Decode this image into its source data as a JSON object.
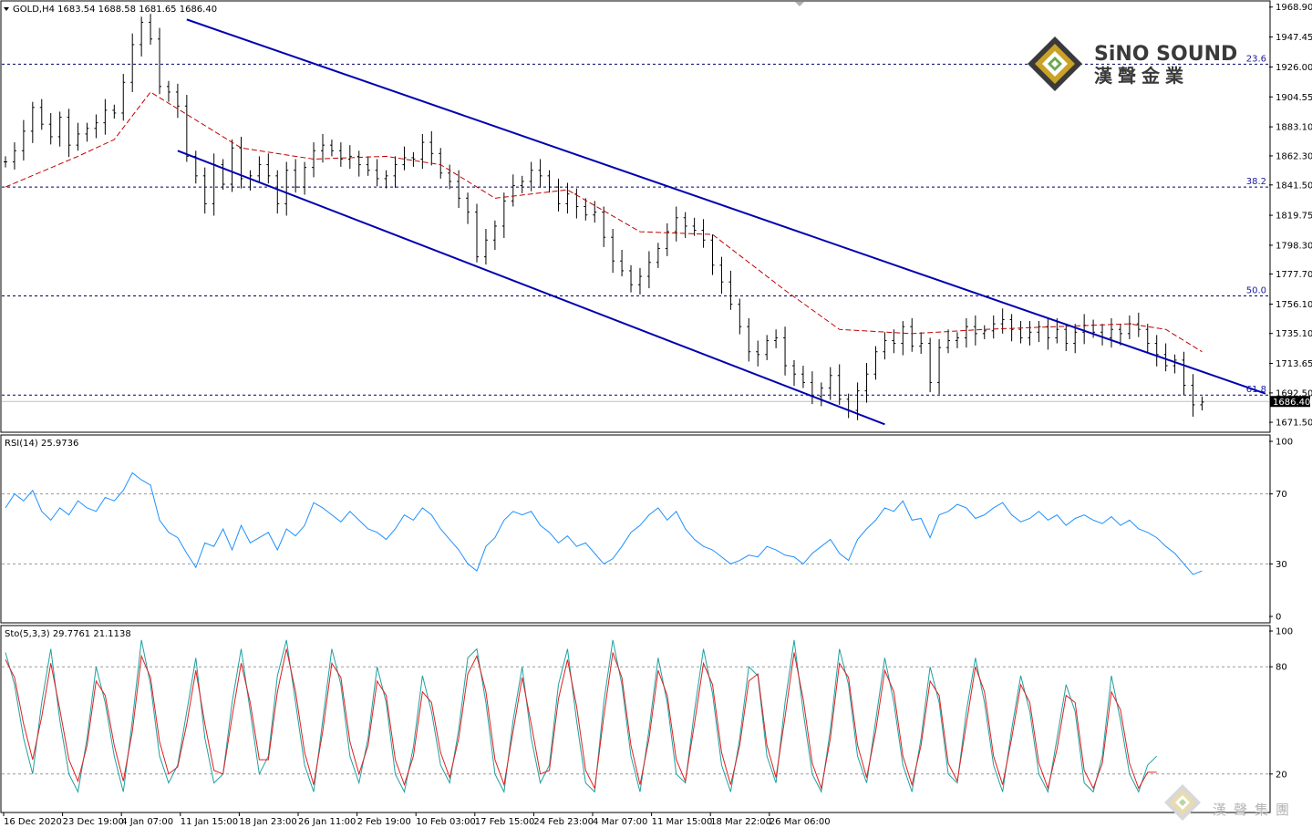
{
  "colors": {
    "background": "#ffffff",
    "candle": "#000000",
    "ma": "#c00000",
    "channel": "#0000b0",
    "fib": "#000066",
    "rsi": "#1e90ff",
    "sto_main": "#20a0a0",
    "sto_signal": "#e02020",
    "grid": "#9a9a9a"
  },
  "header": {
    "symbol_label": "GOLD,H4  1683.54 1688.58 1681.65 1686.40"
  },
  "logo": {
    "name_en": "SiNO SOUND",
    "name_zh": "漢聲金業",
    "watermark_zh": "漢聲集團"
  },
  "chart_data": [
    {
      "type": "candlestick",
      "pane": "price",
      "symbol": "GOLD",
      "timeframe": "H4",
      "last_ohlc": {
        "open": 1683.54,
        "high": 1688.58,
        "low": 1681.65,
        "close": 1686.4
      },
      "current_price_label": "1686.40",
      "ylim": [
        1665,
        1972
      ],
      "y_ticks": [
        "1968.90",
        "1947.45",
        "1926.00",
        "1904.55",
        "1883.10",
        "1862.30",
        "1841.50",
        "1819.75",
        "1798.30",
        "1777.70",
        "1756.10",
        "1735.10",
        "1713.65",
        "1692.50",
        "1671.50"
      ],
      "x_tick_labels": [
        "16 Dec 2020",
        "23 Dec 19:00",
        "4 Jan 07:00",
        "11 Jan 15:00",
        "18 Jan 23:00",
        "26 Jan 11:00",
        "2 Feb 19:00",
        "10 Feb 03:00",
        "17 Feb 15:00",
        "24 Feb 23:00",
        "4 Mar 07:00",
        "11 Mar 15:00",
        "18 Mar 22:00",
        "26 Mar 06:00"
      ],
      "close_path": [
        [
          0,
          1858
        ],
        [
          1,
          1866
        ],
        [
          2,
          1880
        ],
        [
          3,
          1897
        ],
        [
          4,
          1885
        ],
        [
          5,
          1876
        ],
        [
          6,
          1890
        ],
        [
          7,
          1870
        ],
        [
          8,
          1878
        ],
        [
          9,
          1882
        ],
        [
          10,
          1886
        ],
        [
          11,
          1895
        ],
        [
          12,
          1893
        ],
        [
          13,
          1915
        ],
        [
          14,
          1942
        ],
        [
          15,
          1958
        ],
        [
          16,
          1946
        ],
        [
          17,
          1912
        ],
        [
          18,
          1908
        ],
        [
          19,
          1898
        ],
        [
          20,
          1862
        ],
        [
          21,
          1848
        ],
        [
          22,
          1828
        ],
        [
          23,
          1856
        ],
        [
          24,
          1842
        ],
        [
          25,
          1868
        ],
        [
          26,
          1846
        ],
        [
          27,
          1848
        ],
        [
          28,
          1856
        ],
        [
          29,
          1848
        ],
        [
          30,
          1828
        ],
        [
          31,
          1852
        ],
        [
          32,
          1840
        ],
        [
          33,
          1854
        ],
        [
          34,
          1866
        ],
        [
          35,
          1870
        ],
        [
          36,
          1866
        ],
        [
          37,
          1860
        ],
        [
          38,
          1862
        ],
        [
          39,
          1856
        ],
        [
          40,
          1852
        ],
        [
          41,
          1846
        ],
        [
          42,
          1848
        ],
        [
          43,
          1856
        ],
        [
          44,
          1861
        ],
        [
          45,
          1860
        ],
        [
          46,
          1872
        ],
        [
          47,
          1864
        ],
        [
          48,
          1850
        ],
        [
          49,
          1844
        ],
        [
          50,
          1832
        ],
        [
          51,
          1822
        ],
        [
          52,
          1790
        ],
        [
          53,
          1802
        ],
        [
          54,
          1812
        ],
        [
          55,
          1830
        ],
        [
          56,
          1841
        ],
        [
          57,
          1844
        ],
        [
          58,
          1852
        ],
        [
          59,
          1848
        ],
        [
          60,
          1840
        ],
        [
          61,
          1828
        ],
        [
          62,
          1835
        ],
        [
          63,
          1826
        ],
        [
          64,
          1820
        ],
        [
          65,
          1822
        ],
        [
          66,
          1804
        ],
        [
          67,
          1787
        ],
        [
          68,
          1780
        ],
        [
          69,
          1770
        ],
        [
          70,
          1776
        ],
        [
          71,
          1786
        ],
        [
          72,
          1796
        ],
        [
          73,
          1808
        ],
        [
          74,
          1818
        ],
        [
          75,
          1812
        ],
        [
          76,
          1809
        ],
        [
          77,
          1802
        ],
        [
          78,
          1784
        ],
        [
          79,
          1772
        ],
        [
          80,
          1756
        ],
        [
          81,
          1740
        ],
        [
          82,
          1722
        ],
        [
          83,
          1720
        ],
        [
          84,
          1730
        ],
        [
          85,
          1732
        ],
        [
          86,
          1712
        ],
        [
          87,
          1706
        ],
        [
          88,
          1700
        ],
        [
          89,
          1690
        ],
        [
          90,
          1696
        ],
        [
          91,
          1705
        ],
        [
          92,
          1688
        ],
        [
          93,
          1680
        ],
        [
          94,
          1694
        ],
        [
          95,
          1706
        ],
        [
          96,
          1722
        ],
        [
          97,
          1730
        ],
        [
          98,
          1728
        ],
        [
          99,
          1740
        ],
        [
          100,
          1726
        ],
        [
          101,
          1728
        ],
        [
          102,
          1700
        ],
        [
          103,
          1725
        ],
        [
          104,
          1730
        ],
        [
          105,
          1732
        ],
        [
          106,
          1740
        ],
        [
          107,
          1735
        ],
        [
          108,
          1737
        ],
        [
          109,
          1742
        ],
        [
          110,
          1745
        ],
        [
          111,
          1738
        ],
        [
          112,
          1732
        ],
        [
          113,
          1736
        ],
        [
          114,
          1740
        ],
        [
          115,
          1732
        ],
        [
          116,
          1738
        ],
        [
          117,
          1728
        ],
        [
          118,
          1736
        ],
        [
          119,
          1741
        ],
        [
          120,
          1736
        ],
        [
          121,
          1732
        ],
        [
          122,
          1738
        ],
        [
          123,
          1735
        ],
        [
          124,
          1742
        ],
        [
          125,
          1738
        ],
        [
          126,
          1728
        ],
        [
          127,
          1720
        ],
        [
          128,
          1712
        ],
        [
          129,
          1716
        ],
        [
          130,
          1698
        ],
        [
          131,
          1684
        ],
        [
          132,
          1686
        ]
      ],
      "moving_average": {
        "type": "dashed",
        "points": [
          [
            0,
            1840
          ],
          [
            8,
            1862
          ],
          [
            12,
            1874
          ],
          [
            16,
            1908
          ],
          [
            20,
            1892
          ],
          [
            26,
            1868
          ],
          [
            34,
            1860
          ],
          [
            42,
            1862
          ],
          [
            48,
            1856
          ],
          [
            54,
            1832
          ],
          [
            62,
            1838
          ],
          [
            70,
            1808
          ],
          [
            78,
            1806
          ],
          [
            86,
            1766
          ],
          [
            92,
            1738
          ],
          [
            100,
            1735
          ],
          [
            108,
            1738
          ],
          [
            116,
            1740
          ],
          [
            124,
            1742
          ],
          [
            128,
            1738
          ],
          [
            132,
            1722
          ]
        ]
      },
      "channel_lines": [
        {
          "from": [
            20,
            1960
          ],
          "to": [
            139,
            1692
          ]
        },
        {
          "from": [
            19,
            1866
          ],
          "to": [
            97,
            1670
          ]
        }
      ],
      "fib_levels": [
        {
          "label": "23.6",
          "value": 1928
        },
        {
          "label": "38.2",
          "value": 1840
        },
        {
          "label": "50.0",
          "value": 1762
        },
        {
          "label": "61.8",
          "value": 1691
        }
      ]
    },
    {
      "type": "line",
      "pane": "rsi",
      "title": "RSI(14) 25.9736",
      "ylim": [
        0,
        100
      ],
      "y_ticks": [
        "100",
        "70",
        "30",
        "0"
      ],
      "levels": [
        70,
        30
      ],
      "values": [
        62,
        70,
        66,
        72,
        60,
        55,
        62,
        58,
        66,
        62,
        60,
        68,
        66,
        72,
        82,
        78,
        75,
        55,
        48,
        45,
        36,
        28,
        42,
        40,
        50,
        38,
        52,
        42,
        45,
        48,
        38,
        50,
        46,
        52,
        65,
        62,
        58,
        54,
        60,
        55,
        50,
        48,
        44,
        50,
        58,
        55,
        62,
        58,
        50,
        44,
        38,
        30,
        26,
        40,
        45,
        55,
        60,
        58,
        60,
        52,
        48,
        42,
        46,
        40,
        42,
        36,
        30,
        33,
        40,
        48,
        52,
        58,
        62,
        55,
        60,
        50,
        44,
        40,
        38,
        34,
        30,
        32,
        35,
        34,
        40,
        38,
        35,
        34,
        30,
        36,
        40,
        44,
        36,
        32,
        44,
        50,
        55,
        62,
        60,
        66,
        55,
        56,
        45,
        58,
        60,
        64,
        62,
        56,
        58,
        62,
        65,
        58,
        54,
        56,
        60,
        55,
        58,
        52,
        56,
        58,
        55,
        53,
        57,
        52,
        55,
        50,
        48,
        45,
        40,
        36,
        30,
        24,
        26
      ]
    },
    {
      "type": "line",
      "pane": "stochastic",
      "title": "Sto(5,3,3) 29.7761 21.1138",
      "ylim": [
        0,
        100
      ],
      "y_ticks": [
        "100",
        "80",
        "20"
      ],
      "levels": [
        80,
        20
      ],
      "series": [
        {
          "name": "main",
          "values": [
            88,
            70,
            40,
            20,
            60,
            90,
            50,
            20,
            10,
            40,
            80,
            60,
            30,
            10,
            50,
            95,
            70,
            30,
            15,
            25,
            55,
            85,
            40,
            15,
            20,
            60,
            90,
            55,
            20,
            30,
            75,
            95,
            60,
            25,
            10,
            50,
            90,
            70,
            30,
            15,
            40,
            80,
            60,
            20,
            10,
            35,
            75,
            55,
            25,
            15,
            45,
            85,
            90,
            60,
            20,
            10,
            50,
            80,
            40,
            15,
            25,
            70,
            90,
            50,
            15,
            10,
            60,
            95,
            70,
            30,
            10,
            45,
            85,
            60,
            20,
            15,
            55,
            90,
            65,
            25,
            10,
            40,
            80,
            75,
            30,
            15,
            60,
            95,
            55,
            20,
            10,
            45,
            90,
            70,
            30,
            15,
            50,
            85,
            60,
            25,
            10,
            40,
            80,
            60,
            20,
            15,
            55,
            85,
            60,
            25,
            10,
            45,
            75,
            55,
            20,
            10,
            40,
            70,
            55,
            15,
            10,
            30,
            75,
            50,
            20,
            10,
            25,
            30
          ]
        },
        {
          "name": "signal",
          "values": [
            84,
            74,
            48,
            28,
            52,
            82,
            56,
            28,
            16,
            36,
            72,
            64,
            36,
            16,
            44,
            86,
            74,
            38,
            20,
            24,
            48,
            78,
            48,
            22,
            20,
            52,
            82,
            60,
            28,
            28,
            66,
            90,
            66,
            32,
            14,
            44,
            82,
            74,
            38,
            20,
            36,
            72,
            64,
            28,
            14,
            30,
            66,
            60,
            32,
            18,
            40,
            76,
            86,
            66,
            28,
            14,
            44,
            74,
            48,
            20,
            22,
            62,
            84,
            58,
            22,
            12,
            52,
            88,
            74,
            36,
            14,
            40,
            78,
            64,
            28,
            16,
            48,
            82,
            70,
            32,
            14,
            36,
            72,
            76,
            36,
            18,
            52,
            88,
            62,
            26,
            12,
            40,
            82,
            74,
            36,
            18,
            44,
            78,
            66,
            30,
            14,
            36,
            72,
            64,
            26,
            16,
            48,
            80,
            66,
            30,
            14,
            40,
            70,
            60,
            26,
            12,
            34,
            64,
            60,
            22,
            12,
            26,
            66,
            56,
            26,
            12,
            21,
            21
          ]
        }
      ]
    }
  ]
}
